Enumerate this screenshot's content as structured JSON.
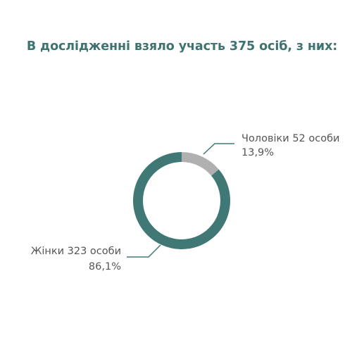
{
  "title": "В дослідженні взяло участь 375 осіб,  з них:",
  "chart_data": {
    "type": "pie",
    "style": "donut",
    "total": 375,
    "series": [
      {
        "name": "Чоловіки",
        "value": 52,
        "unit": "особи",
        "percent": "13,9%",
        "color": "#b0b0b0"
      },
      {
        "name": "Жінки",
        "value": 323,
        "unit": "особи",
        "percent": "86,1%",
        "color": "#407876"
      }
    ],
    "labels": [
      {
        "line1": "Чоловіки 52 особи",
        "line2": "13,9%"
      },
      {
        "line1": "Жінки 323 особи",
        "line2": "86,1%"
      }
    ],
    "legend": "none"
  }
}
